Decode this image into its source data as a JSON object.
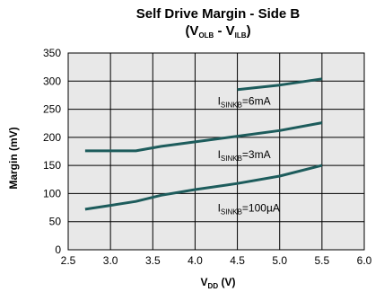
{
  "chart_data": {
    "type": "line",
    "title": {
      "line1": "Self Drive Margin - Side B",
      "line2_open": "(V",
      "line2_sub1": "OLB",
      "line2_mid": " - V",
      "line2_sub2": "ILB",
      "line2_close": ")"
    },
    "xlabel": {
      "main": "V",
      "sub": "DD",
      "rest": " (V)"
    },
    "ylabel": "Margin (mV)",
    "xlim": [
      2.5,
      6.0
    ],
    "ylim": [
      0,
      350
    ],
    "xticks": [
      "2.5",
      "3.0",
      "3.5",
      "4.0",
      "4.5",
      "5.0",
      "5.5",
      "6.0"
    ],
    "yticks": [
      "0",
      "50",
      "100",
      "150",
      "200",
      "250",
      "300",
      "350"
    ],
    "grid": true,
    "line_color": "#1d5c5c",
    "series": [
      {
        "label": {
          "main": "I",
          "sub": "SINKB",
          "rest": "=6mA"
        },
        "label_at": [
          4.5,
          258
        ],
        "x": [
          4.5,
          5.0,
          5.5
        ],
        "y": [
          285,
          293,
          304
        ]
      },
      {
        "label": {
          "main": "I",
          "sub": "SINKB",
          "rest": "=3mA"
        },
        "label_at": [
          4.5,
          163
        ],
        "x": [
          2.7,
          3.0,
          3.3,
          3.6,
          4.0,
          4.5,
          5.0,
          5.5
        ],
        "y": [
          176,
          176,
          176,
          184,
          192,
          202,
          212,
          226
        ]
      },
      {
        "label": {
          "main": "I",
          "sub": "SINKB",
          "rest": "=100µA"
        },
        "label_at": [
          4.5,
          68
        ],
        "x": [
          2.7,
          3.0,
          3.3,
          3.6,
          4.0,
          4.5,
          5.0,
          5.5
        ],
        "y": [
          72,
          79,
          86,
          97,
          107,
          118,
          131,
          150
        ]
      }
    ]
  }
}
